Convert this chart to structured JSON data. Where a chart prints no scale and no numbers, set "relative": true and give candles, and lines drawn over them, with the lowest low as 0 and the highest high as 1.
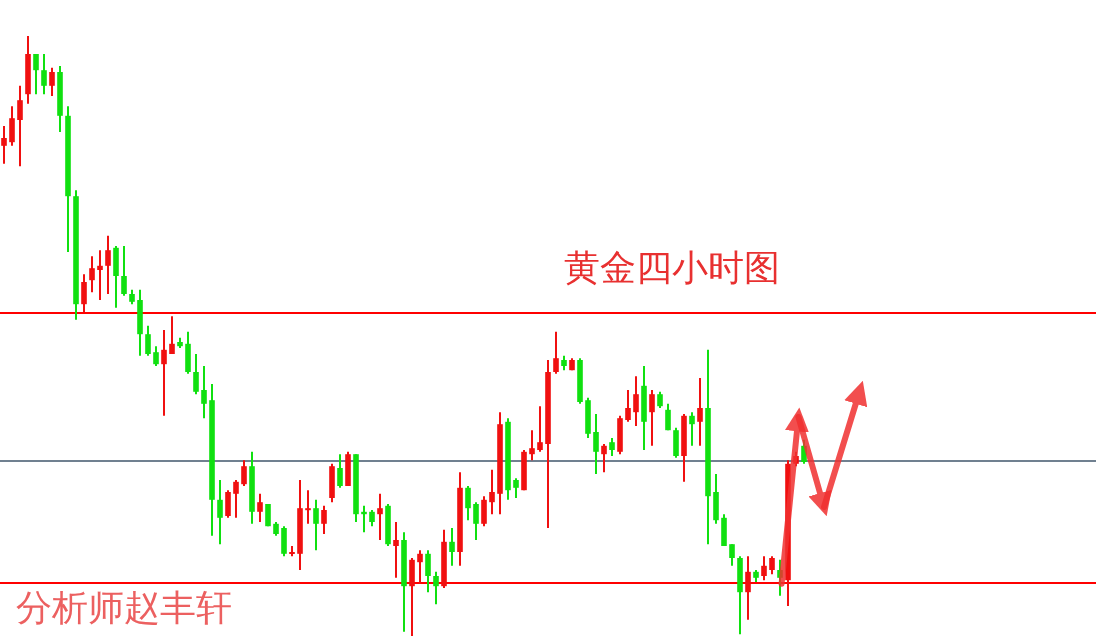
{
  "chart_data": {
    "type": "candlestick",
    "relative": true,
    "title": "黄金四小时图",
    "annotations": [
      "分析师赵丰轩"
    ],
    "categories": [
      null,
      null,
      null,
      null,
      null,
      null,
      null,
      null,
      null,
      null,
      null,
      null,
      null,
      null,
      null,
      null,
      null,
      null,
      null,
      null,
      null,
      null,
      null,
      null,
      null,
      null,
      null,
      null,
      null,
      null,
      null,
      null,
      null,
      null,
      null,
      null,
      null,
      null,
      null,
      null,
      null,
      null,
      null,
      null,
      null,
      null,
      null,
      null,
      null,
      null,
      null,
      null,
      null,
      null,
      null,
      null,
      null,
      null,
      null,
      null,
      null,
      null,
      null,
      null,
      null,
      null,
      null,
      null,
      null,
      null,
      null,
      null,
      null,
      null,
      null,
      null,
      null,
      null,
      null,
      null,
      null,
      null,
      null,
      null,
      null,
      null,
      null,
      null,
      null,
      null,
      null,
      null,
      null,
      null,
      null,
      null,
      null,
      null,
      null,
      null,
      null,
      null,
      null,
      null,
      null,
      null,
      null,
      null,
      null,
      null,
      null,
      null,
      null,
      null,
      null,
      null,
      null,
      null,
      null,
      null,
      null,
      null,
      null,
      null,
      null,
      null,
      null,
      null,
      null,
      null,
      null,
      null,
      null,
      null,
      null,
      null,
      null
    ],
    "ohlc": [
      [
        0.817,
        0.85,
        0.787,
        0.83
      ],
      [
        0.823,
        0.883,
        0.817,
        0.863
      ],
      [
        0.86,
        0.917,
        0.783,
        0.893
      ],
      [
        0.903,
        1.0,
        0.887,
        0.97
      ],
      [
        0.97,
        0.97,
        0.903,
        0.943
      ],
      [
        0.943,
        0.97,
        0.903,
        0.917
      ],
      [
        0.917,
        0.947,
        0.9,
        0.94
      ],
      [
        0.94,
        0.95,
        0.84,
        0.867
      ],
      [
        0.867,
        0.883,
        0.64,
        0.733
      ],
      [
        0.733,
        0.743,
        0.527,
        0.553
      ],
      [
        0.553,
        0.603,
        0.54,
        0.59
      ],
      [
        0.593,
        0.633,
        0.573,
        0.613
      ],
      [
        0.61,
        0.643,
        0.56,
        0.617
      ],
      [
        0.617,
        0.667,
        0.57,
        0.643
      ],
      [
        0.647,
        0.65,
        0.547,
        0.6
      ],
      [
        0.6,
        0.65,
        0.567,
        0.57
      ],
      [
        0.57,
        0.577,
        0.553,
        0.557
      ],
      [
        0.56,
        0.577,
        0.467,
        0.503
      ],
      [
        0.503,
        0.517,
        0.467,
        0.47
      ],
      [
        0.473,
        0.483,
        0.45,
        0.453
      ],
      [
        0.453,
        0.51,
        0.367,
        0.477
      ],
      [
        0.47,
        0.533,
        0.47,
        0.487
      ],
      [
        0.49,
        0.497,
        0.48,
        0.483
      ],
      [
        0.487,
        0.507,
        0.437,
        0.44
      ],
      [
        0.44,
        0.47,
        0.403,
        0.407
      ],
      [
        0.41,
        0.45,
        0.363,
        0.387
      ],
      [
        0.393,
        0.42,
        0.167,
        0.227
      ],
      [
        0.227,
        0.26,
        0.153,
        0.197
      ],
      [
        0.2,
        0.243,
        0.197,
        0.24
      ],
      [
        0.237,
        0.26,
        0.197,
        0.257
      ],
      [
        0.253,
        0.293,
        0.25,
        0.283
      ],
      [
        0.283,
        0.307,
        0.187,
        0.207
      ],
      [
        0.207,
        0.237,
        0.19,
        0.223
      ],
      [
        0.22,
        0.22,
        0.183,
        0.183
      ],
      [
        0.187,
        0.19,
        0.167,
        0.17
      ],
      [
        0.18,
        0.183,
        0.133,
        0.137
      ],
      [
        0.137,
        0.15,
        0.133,
        0.14
      ],
      [
        0.137,
        0.26,
        0.11,
        0.213
      ],
      [
        0.21,
        0.243,
        0.187,
        0.213
      ],
      [
        0.213,
        0.227,
        0.143,
        0.187
      ],
      [
        0.187,
        0.217,
        0.17,
        0.21
      ],
      [
        0.23,
        0.287,
        0.223,
        0.283
      ],
      [
        0.28,
        0.303,
        0.247,
        0.25
      ],
      [
        0.25,
        0.307,
        0.25,
        0.303
      ],
      [
        0.303,
        0.303,
        0.19,
        0.203
      ],
      [
        0.207,
        0.217,
        0.173,
        0.203
      ],
      [
        0.207,
        0.21,
        0.183,
        0.19
      ],
      [
        0.203,
        0.237,
        0.16,
        0.213
      ],
      [
        0.217,
        0.22,
        0.15,
        0.153
      ],
      [
        0.15,
        0.19,
        0.097,
        0.16
      ],
      [
        0.16,
        0.173,
        0.007,
        0.083
      ],
      [
        0.083,
        0.13,
        0.0,
        0.127
      ],
      [
        0.123,
        0.143,
        0.087,
        0.137
      ],
      [
        0.137,
        0.143,
        0.073,
        0.1
      ],
      [
        0.1,
        0.107,
        0.053,
        0.083
      ],
      [
        0.083,
        0.177,
        0.08,
        0.157
      ],
      [
        0.157,
        0.18,
        0.117,
        0.14
      ],
      [
        0.14,
        0.273,
        0.117,
        0.247
      ],
      [
        0.247,
        0.25,
        0.193,
        0.213
      ],
      [
        0.22,
        0.223,
        0.16,
        0.187
      ],
      [
        0.187,
        0.233,
        0.183,
        0.227
      ],
      [
        0.223,
        0.277,
        0.203,
        0.24
      ],
      [
        0.237,
        0.373,
        0.203,
        0.353
      ],
      [
        0.357,
        0.363,
        0.227,
        0.243
      ],
      [
        0.26,
        0.263,
        0.23,
        0.247
      ],
      [
        0.243,
        0.31,
        0.243,
        0.307
      ],
      [
        0.303,
        0.343,
        0.293,
        0.313
      ],
      [
        0.31,
        0.383,
        0.307,
        0.323
      ],
      [
        0.32,
        0.46,
        0.18,
        0.44
      ],
      [
        0.44,
        0.507,
        0.437,
        0.463
      ],
      [
        0.46,
        0.467,
        0.443,
        0.45
      ],
      [
        0.443,
        0.463,
        0.443,
        0.46
      ],
      [
        0.46,
        0.463,
        0.387,
        0.39
      ],
      [
        0.393,
        0.397,
        0.33,
        0.337
      ],
      [
        0.34,
        0.37,
        0.27,
        0.307
      ],
      [
        0.303,
        0.32,
        0.273,
        0.317
      ],
      [
        0.323,
        0.33,
        0.3,
        0.31
      ],
      [
        0.307,
        0.367,
        0.303,
        0.363
      ],
      [
        0.36,
        0.41,
        0.357,
        0.38
      ],
      [
        0.373,
        0.433,
        0.35,
        0.403
      ],
      [
        0.417,
        0.45,
        0.31,
        0.357
      ],
      [
        0.373,
        0.41,
        0.317,
        0.403
      ],
      [
        0.403,
        0.407,
        0.38,
        0.383
      ],
      [
        0.377,
        0.387,
        0.343,
        0.343
      ],
      [
        0.343,
        0.347,
        0.297,
        0.3
      ],
      [
        0.3,
        0.37,
        0.257,
        0.367
      ],
      [
        0.367,
        0.373,
        0.317,
        0.353
      ],
      [
        0.357,
        0.43,
        0.317,
        0.38
      ],
      [
        0.38,
        0.477,
        0.153,
        0.233
      ],
      [
        0.24,
        0.27,
        0.187,
        0.193
      ],
      [
        0.197,
        0.203,
        0.15,
        0.15
      ],
      [
        0.153,
        0.153,
        0.117,
        0.13
      ],
      [
        0.13,
        0.133,
        0.003,
        0.073
      ],
      [
        0.073,
        0.133,
        0.027,
        0.107
      ],
      [
        0.107,
        0.11,
        0.09,
        0.097
      ],
      [
        0.1,
        0.133,
        0.093,
        0.117
      ],
      [
        0.11,
        0.133,
        0.103,
        0.13
      ],
      [
        0.11,
        0.127,
        0.067,
        0.097
      ],
      [
        0.093,
        0.293,
        0.05,
        0.287
      ],
      [
        0.287,
        0.307,
        0.283,
        0.3
      ],
      [
        0.317,
        0.327,
        0.287,
        0.29
      ],
      null,
      null,
      null,
      null,
      null,
      null,
      null,
      null,
      null,
      null,
      null,
      null,
      null,
      null,
      null,
      null,
      null,
      null,
      null,
      null,
      null,
      null,
      null,
      null,
      null,
      null,
      null,
      null,
      null,
      null,
      null,
      null,
      null,
      null,
      null,
      null
    ],
    "ref_lines": [
      {
        "axis": "y",
        "value": 0.54,
        "color": "#ff0000"
      },
      {
        "axis": "y",
        "value": 0.293,
        "color": "#708090"
      },
      {
        "axis": "y",
        "value": 0.09,
        "color": "#ff0000"
      }
    ]
  }
}
